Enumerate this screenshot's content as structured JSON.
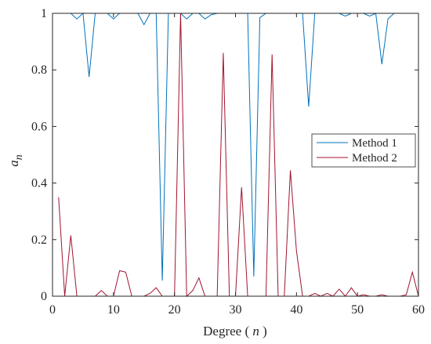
{
  "chart_data": {
    "type": "line",
    "x": [
      1,
      2,
      3,
      4,
      5,
      6,
      7,
      8,
      9,
      10,
      11,
      12,
      13,
      14,
      15,
      16,
      17,
      18,
      19,
      20,
      21,
      22,
      23,
      24,
      25,
      26,
      27,
      28,
      29,
      30,
      31,
      32,
      33,
      34,
      35,
      36,
      37,
      38,
      39,
      40,
      41,
      42,
      43,
      44,
      45,
      46,
      47,
      48,
      49,
      50,
      51,
      52,
      53,
      54,
      55,
      56,
      57,
      58,
      59,
      60
    ],
    "series": [
      {
        "name": "Method 1",
        "color": "#0072BD",
        "values": [
          1.0,
          1.0,
          1.0,
          0.98,
          1.0,
          0.775,
          1.0,
          1.0,
          1.0,
          0.98,
          1.0,
          1.0,
          1.0,
          1.0,
          0.96,
          1.0,
          1.0,
          0.055,
          1.0,
          1.0,
          1.0,
          0.98,
          1.0,
          1.0,
          0.98,
          0.995,
          1.0,
          1.0,
          1.0,
          1.0,
          1.0,
          1.0,
          0.07,
          0.985,
          1.0,
          1.0,
          1.0,
          1.0,
          1.0,
          1.0,
          1.0,
          0.67,
          1.0,
          1.0,
          1.0,
          1.0,
          1.0,
          0.99,
          1.0,
          1.0,
          1.0,
          0.99,
          1.0,
          0.82,
          0.98,
          1.0,
          1.0,
          1.0,
          1.0,
          1.0
        ]
      },
      {
        "name": "Method 2",
        "color": "#A2142F",
        "values": [
          0.35,
          0.0,
          0.215,
          0.0,
          0.0,
          0.0,
          0.0,
          0.02,
          0.0,
          0.0,
          0.09,
          0.085,
          0.0,
          0.0,
          0.0,
          0.01,
          0.03,
          0.0,
          0.0,
          0.0,
          1.0,
          0.0,
          0.02,
          0.065,
          0.0,
          0.0,
          0.0,
          0.86,
          0.0,
          0.0,
          0.385,
          0.0,
          0.0,
          0.0,
          0.0,
          0.855,
          0.0,
          0.0,
          0.445,
          0.16,
          0.0,
          0.0,
          0.01,
          0.0,
          0.01,
          0.0,
          0.025,
          0.0,
          0.03,
          0.0,
          0.005,
          0.0,
          0.0,
          0.005,
          0.0,
          0.0,
          0.0,
          0.005,
          0.085,
          0.0
        ]
      }
    ],
    "xlabel": "Degree ( n )",
    "ylabel": "a_n",
    "ylabel_main": "a",
    "ylabel_sub": "n",
    "xlim": [
      0,
      60
    ],
    "ylim": [
      0,
      1
    ],
    "xticks": [
      0,
      10,
      20,
      30,
      40,
      50,
      60
    ],
    "yticks": [
      0,
      0.2,
      0.4,
      0.6,
      0.8,
      1
    ],
    "xtick_labels": [
      "0",
      "10",
      "20",
      "30",
      "40",
      "50",
      "60"
    ],
    "ytick_labels": [
      "0",
      "0.2",
      "0.4",
      "0.6",
      "0.8",
      "1"
    ],
    "grid": false,
    "legend_position": "right"
  },
  "labels": {
    "xlabel_prefix": "Degree ( ",
    "xlabel_var": "n",
    "xlabel_suffix": " )"
  }
}
